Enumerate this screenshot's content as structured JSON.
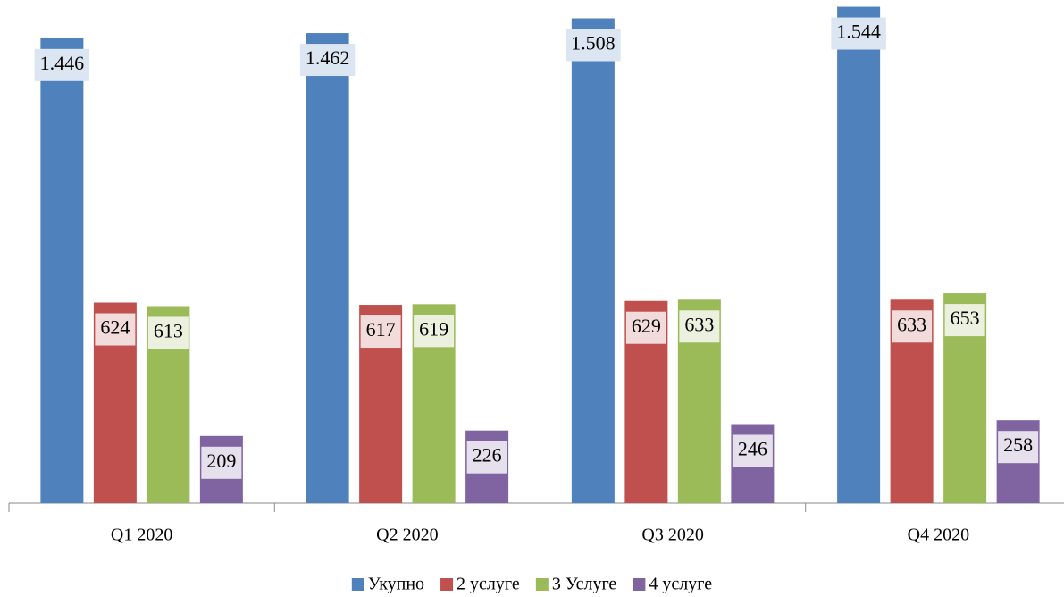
{
  "chart_data": {
    "type": "bar",
    "categories": [
      "Q1 2020",
      "Q2 2020",
      "Q3 2020",
      "Q4 2020"
    ],
    "series": [
      {
        "name": "Укупно",
        "color": "#4f81bd",
        "values": [
          1446,
          1462,
          1508,
          1544
        ],
        "value_labels": [
          "1.446",
          "1.462",
          "1.508",
          "1.544"
        ]
      },
      {
        "name": "2 услуге",
        "color": "#c0504d",
        "values": [
          624,
          617,
          629,
          633
        ]
      },
      {
        "name": "3 Услуге",
        "color": "#9bbb59",
        "values": [
          613,
          619,
          633,
          653
        ]
      },
      {
        "name": "4 услуге",
        "color": "#8064a2",
        "values": [
          209,
          226,
          246,
          258
        ]
      }
    ],
    "ylim": [
      0,
      1565
    ],
    "legend": "bottom"
  }
}
